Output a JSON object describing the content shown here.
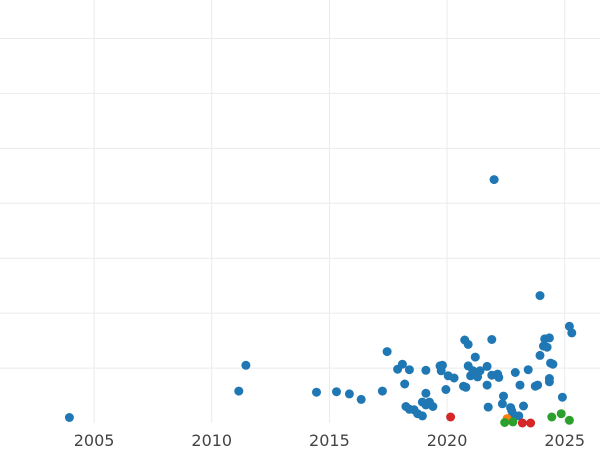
{
  "chart_data": {
    "type": "scatter",
    "title": "",
    "xlabel": "",
    "ylabel": "",
    "xlim": [
      2001.0,
      2026.5
    ],
    "ylim": [
      0,
      7.7
    ],
    "x_ticks": [
      2005,
      2010,
      2015,
      2020,
      2025
    ],
    "x_tick_labels": [
      "2005",
      "2010",
      "2015",
      "2020",
      "2025"
    ],
    "y_gridlines": [
      1,
      2,
      3,
      4,
      5,
      6,
      7
    ],
    "grid": true,
    "legend": "none",
    "colors": {
      "blue": "#1f77b4",
      "orange": "#ff7f0e",
      "green": "#2ca02c",
      "red": "#d62728",
      "grid": "#ebebeb",
      "tick_text": "#444444"
    },
    "series": [
      {
        "color": "blue",
        "points": [
          [
            2003.95,
            0.1
          ],
          [
            2011.15,
            0.58
          ],
          [
            2011.45,
            1.05
          ],
          [
            2014.45,
            0.56
          ],
          [
            2015.3,
            0.57
          ],
          [
            2015.85,
            0.53
          ],
          [
            2016.35,
            0.43
          ],
          [
            2017.25,
            0.58
          ],
          [
            2017.45,
            1.3
          ],
          [
            2017.9,
            0.98
          ],
          [
            2018.1,
            1.07
          ],
          [
            2018.2,
            0.71
          ],
          [
            2018.25,
            0.3
          ],
          [
            2018.4,
            0.25
          ],
          [
            2018.4,
            0.97
          ],
          [
            2018.6,
            0.24
          ],
          [
            2018.75,
            0.17
          ],
          [
            2018.95,
            0.38
          ],
          [
            2018.95,
            0.13
          ],
          [
            2019.1,
            0.54
          ],
          [
            2019.1,
            0.96
          ],
          [
            2019.1,
            0.33
          ],
          [
            2019.25,
            0.38
          ],
          [
            2019.4,
            0.3
          ],
          [
            2019.7,
            1.04
          ],
          [
            2019.75,
            0.95
          ],
          [
            2019.8,
            1.05
          ],
          [
            2019.95,
            0.61
          ],
          [
            2020.05,
            0.86
          ],
          [
            2020.3,
            0.82
          ],
          [
            2020.7,
            0.67
          ],
          [
            2020.75,
            1.51
          ],
          [
            2020.8,
            0.65
          ],
          [
            2020.9,
            1.43
          ],
          [
            2020.9,
            1.04
          ],
          [
            2021.0,
            0.86
          ],
          [
            2021.1,
            0.95
          ],
          [
            2021.2,
            1.2
          ],
          [
            2021.2,
            0.91
          ],
          [
            2021.3,
            0.84
          ],
          [
            2021.4,
            0.95
          ],
          [
            2021.7,
            1.03
          ],
          [
            2021.7,
            0.69
          ],
          [
            2021.75,
            0.29
          ],
          [
            2021.9,
            1.52
          ],
          [
            2021.9,
            0.87
          ],
          [
            2022.0,
            4.43
          ],
          [
            2022.15,
            0.89
          ],
          [
            2022.2,
            0.83
          ],
          [
            2022.35,
            0.35
          ],
          [
            2022.4,
            0.49
          ],
          [
            2022.7,
            0.28
          ],
          [
            2022.75,
            0.22
          ],
          [
            2022.8,
            0.16
          ],
          [
            2022.9,
            0.92
          ],
          [
            2023.05,
            0.13
          ],
          [
            2023.1,
            0.69
          ],
          [
            2023.25,
            0.31
          ],
          [
            2023.45,
            0.97
          ],
          [
            2023.75,
            0.67
          ],
          [
            2023.85,
            0.69
          ],
          [
            2023.95,
            1.23
          ],
          [
            2023.95,
            2.32
          ],
          [
            2024.1,
            1.4
          ],
          [
            2024.15,
            1.53
          ],
          [
            2024.25,
            1.38
          ],
          [
            2024.35,
            1.55
          ],
          [
            2024.35,
            0.75
          ],
          [
            2024.35,
            0.81
          ],
          [
            2024.4,
            1.09
          ],
          [
            2024.5,
            1.07
          ],
          [
            2024.9,
            0.47
          ],
          [
            2025.2,
            1.76
          ],
          [
            2025.3,
            1.64
          ]
        ]
      },
      {
        "color": "orange",
        "points": [
          [
            2022.55,
            0.08
          ]
        ]
      },
      {
        "color": "green",
        "points": [
          [
            2022.45,
            0.01
          ],
          [
            2022.8,
            0.02
          ],
          [
            2024.45,
            0.11
          ],
          [
            2024.85,
            0.17
          ],
          [
            2025.2,
            0.05
          ]
        ]
      },
      {
        "color": "red",
        "points": [
          [
            2020.15,
            0.11
          ],
          [
            2023.2,
            0.0
          ],
          [
            2023.55,
            0.0
          ]
        ]
      }
    ]
  }
}
